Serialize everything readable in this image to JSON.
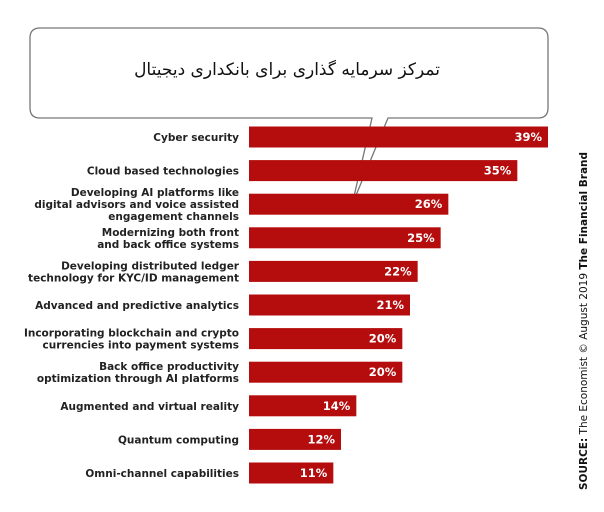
{
  "callout": {
    "title": "تمرکز سرمایه گذاری برای بانکداری دیجیتال"
  },
  "source": {
    "prefix": "SOURCE:",
    "text": "The Economist © August 2019",
    "brand": "The Financial Brand"
  },
  "chart_data": {
    "type": "bar",
    "orientation": "horizontal",
    "categories": [
      [
        "Cyber security"
      ],
      [
        "Cloud based technologies"
      ],
      [
        "Developing AI platforms like",
        "digital advisors and voice assisted",
        "engagement channels"
      ],
      [
        "Modernizing both front",
        "and back office systems"
      ],
      [
        "Developing distributed ledger",
        "technology for KYC/ID management"
      ],
      [
        "Advanced and predictive analytics"
      ],
      [
        "Incorporating blockchain and crypto",
        "currencies into payment systems"
      ],
      [
        "Back office productivity",
        "optimization through AI platforms"
      ],
      [
        "Augmented and virtual reality"
      ],
      [
        "Quantum computing"
      ],
      [
        "Omni-channel capabilities"
      ]
    ],
    "values": [
      39,
      35,
      26,
      25,
      22,
      21,
      20,
      20,
      14,
      12,
      11
    ],
    "value_labels": [
      "39%",
      "35%",
      "26%",
      "25%",
      "22%",
      "21%",
      "20%",
      "20%",
      "14%",
      "12%",
      "11%"
    ],
    "unit": "%",
    "xlim": [
      0,
      39
    ],
    "bar_color": "#b50d0d",
    "grid": false,
    "legend": "none"
  }
}
